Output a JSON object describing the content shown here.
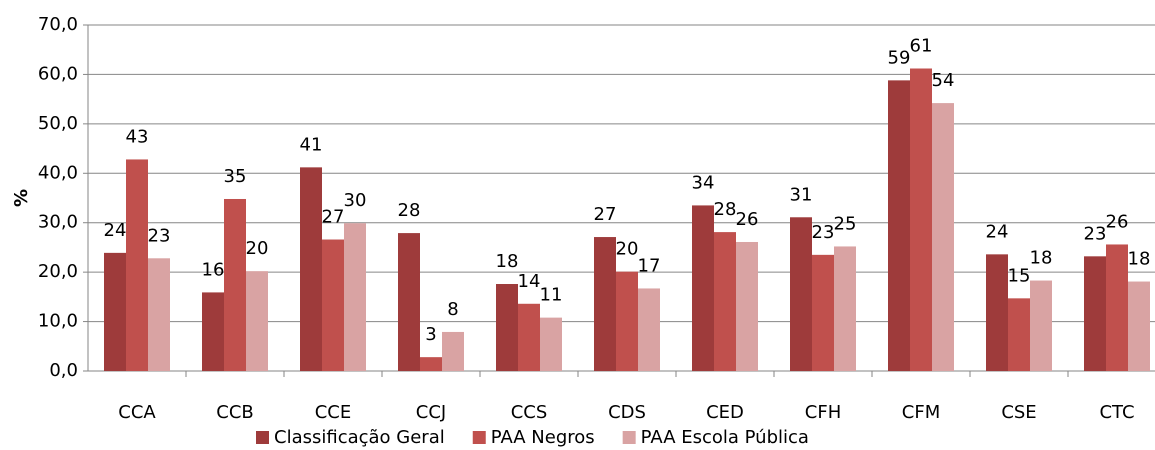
{
  "chart_data": {
    "type": "bar",
    "y_label": "%",
    "categories": [
      "CCA",
      "CCB",
      "CCE",
      "CCJ",
      "CCS",
      "CDS",
      "CED",
      "CFH",
      "CFM",
      "CSE",
      "CTC"
    ],
    "series": [
      {
        "name": "Classificação Geral",
        "color": "#9e3b3b",
        "values": [
          23.9,
          15.9,
          41.2,
          27.9,
          17.6,
          27.1,
          33.5,
          31.1,
          58.8,
          23.6,
          23.2
        ],
        "value_labels": [
          "24",
          "16",
          "41",
          "28",
          "18",
          "27",
          "34",
          "31",
          "59",
          "24",
          "23"
        ]
      },
      {
        "name": "PAA Negros",
        "color": "#c0504d",
        "values": [
          42.8,
          34.8,
          26.6,
          2.8,
          13.6,
          20.1,
          28.1,
          23.5,
          61.2,
          14.7,
          25.6
        ],
        "value_labels": [
          "43",
          "35",
          "27",
          "3",
          "14",
          "20",
          "28",
          "23",
          "61",
          "15",
          "26"
        ]
      },
      {
        "name": "PAA Escola Pública",
        "color": "#d9a3a3",
        "values": [
          22.8,
          20.2,
          29.9,
          7.9,
          10.8,
          16.7,
          26.1,
          25.2,
          54.2,
          18.3,
          18.1
        ],
        "value_labels": [
          "23",
          "20",
          "30",
          "8",
          "11",
          "17",
          "26",
          "25",
          "54",
          "18",
          "18"
        ]
      }
    ],
    "ylim": [
      0,
      70
    ],
    "yticks": [
      {
        "value": 0,
        "label": "0,0"
      },
      {
        "value": 10,
        "label": "10,0"
      },
      {
        "value": 20,
        "label": "20,0"
      },
      {
        "value": 30,
        "label": "30,0"
      },
      {
        "value": 40,
        "label": "40,0"
      },
      {
        "value": 50,
        "label": "50,0"
      },
      {
        "value": 60,
        "label": "60,0"
      },
      {
        "value": 70,
        "label": "70,0"
      }
    ],
    "grid": true
  }
}
